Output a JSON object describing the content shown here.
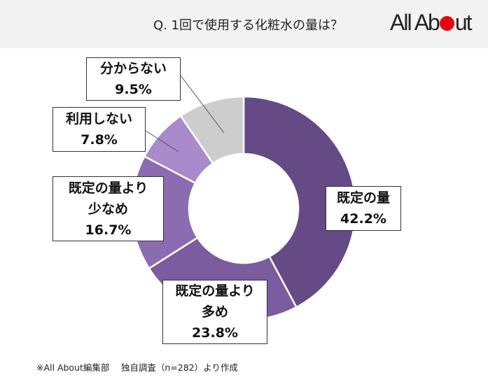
{
  "header": {
    "title": "Q. 1回で使用する化粧水の量は？",
    "logo": "All About",
    "logo_dot_color": "#e60012"
  },
  "chart_data": {
    "type": "pie",
    "donut": true,
    "title": "Q. 1回で使用する化粧水の量は？",
    "categories": [
      "既定の量",
      "既定の量より多め",
      "既定の量より少なめ",
      "利用しない",
      "分からない"
    ],
    "values": [
      42.2,
      23.8,
      16.7,
      7.8,
      9.5
    ],
    "value_labels": [
      "42.2%",
      "23.8%",
      "16.7%",
      "7.8%",
      "9.5%"
    ],
    "colors": [
      "#654a85",
      "#7b5c9e",
      "#8b6cb0",
      "#a98bcb",
      "#cdcdcd"
    ],
    "start": "12 o'clock, clockwise"
  },
  "footnote": "※All About編集部　 独自調査（n=282）より作成"
}
